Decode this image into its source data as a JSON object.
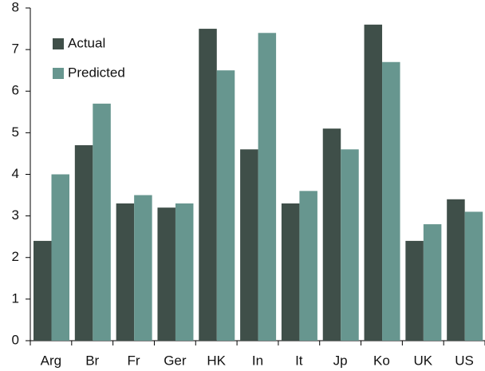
{
  "chart_data": {
    "type": "bar",
    "categories": [
      "Arg",
      "Br",
      "Fr",
      "Ger",
      "HK",
      "In",
      "It",
      "Jp",
      "Ko",
      "UK",
      "US"
    ],
    "series": [
      {
        "name": "Actual",
        "color": "#3f4f49",
        "values": [
          2.4,
          4.7,
          3.3,
          3.2,
          7.5,
          4.6,
          3.3,
          5.1,
          7.6,
          2.4,
          3.4
        ]
      },
      {
        "name": "Predicted",
        "color": "#67968f",
        "values": [
          4.0,
          5.7,
          3.5,
          3.3,
          6.5,
          7.4,
          3.6,
          4.6,
          6.7,
          2.8,
          3.1
        ]
      }
    ],
    "ylim": [
      0,
      8
    ],
    "yticks": [
      0,
      1,
      2,
      3,
      4,
      5,
      6,
      7,
      8
    ],
    "grid": false,
    "legend": "top-left"
  }
}
